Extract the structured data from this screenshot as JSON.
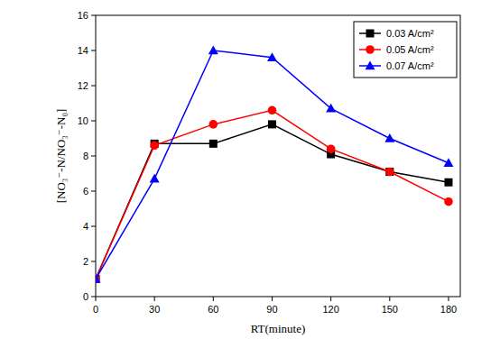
{
  "chart_data": {
    "type": "line",
    "x_label": "RT(minute)",
    "y_label": "[NO₃⁻-N/NO₃⁻-N₀]",
    "x": [
      0,
      30,
      60,
      90,
      120,
      150,
      180
    ],
    "series": [
      {
        "name": "0.03 A/cm²",
        "color": "#000000",
        "marker": "square",
        "values": [
          1,
          8.7,
          8.7,
          9.8,
          8.1,
          7.1,
          6.5
        ]
      },
      {
        "name": "0.05 A/cm²",
        "color": "#ff0000",
        "marker": "circle",
        "values": [
          1,
          8.6,
          9.8,
          10.6,
          8.4,
          7.1,
          5.4
        ]
      },
      {
        "name": "0.07 A/cm²",
        "color": "#0000ff",
        "marker": "triangle",
        "values": [
          1,
          6.7,
          14.0,
          13.6,
          10.7,
          9.0,
          7.6
        ]
      }
    ],
    "xlim": [
      0,
      186
    ],
    "ylim": [
      0,
      16
    ],
    "xticks": [
      0,
      30,
      60,
      90,
      120,
      150,
      180
    ],
    "yticks": [
      0,
      2,
      4,
      6,
      8,
      10,
      12,
      14,
      16
    ],
    "legend": "upper right",
    "grid": false
  }
}
